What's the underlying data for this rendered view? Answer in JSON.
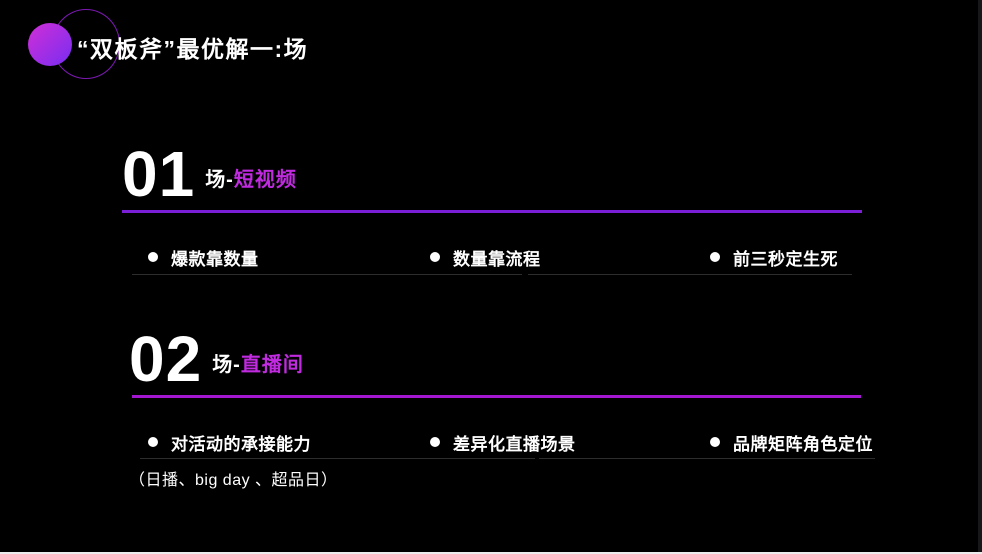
{
  "slide": {
    "title": "“双板斧”最优解一:场",
    "accent_color": "#c02be0",
    "background_color": "#000000"
  },
  "decor": {
    "logo_dot_gradient_from": "#c92fd8",
    "logo_dot_gradient_to": "#7f2df0",
    "logo_ring_color": "#7d18b3"
  },
  "sections": [
    {
      "number": "01",
      "label_prefix": "场-",
      "label_accent": "短视频",
      "divider_color": "#7b1fd6",
      "bullets": [
        "爆款靠数量",
        "数量靠流程",
        "前三秒定生死"
      ],
      "note": ""
    },
    {
      "number": "02",
      "label_prefix": "场-",
      "label_accent": "直播间",
      "divider_color": "#a317d1",
      "bullets": [
        "对活动的承接能力",
        "差异化直播场景",
        "品牌矩阵角色定位"
      ],
      "note": "（日播、big day 、超品日）"
    }
  ]
}
